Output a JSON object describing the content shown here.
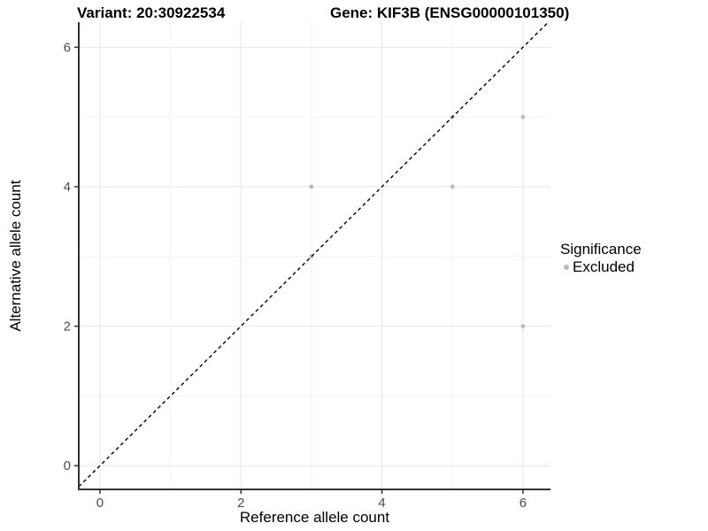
{
  "chart_data": {
    "type": "scatter",
    "titles": [
      "Variant: 20:30922534",
      "Gene: KIF3B (ENSG00000101350)"
    ],
    "xlabel": "Reference allele count",
    "ylabel": "Alternative allele count",
    "xlim": [
      -0.3,
      6.39
    ],
    "ylim": [
      -0.34,
      6.36
    ],
    "x_ticks": [
      0,
      2,
      4,
      6
    ],
    "y_ticks": [
      0,
      2,
      4,
      6
    ],
    "x_minor_ticks": [
      1,
      3,
      5
    ],
    "y_minor_ticks": [
      1,
      3,
      5
    ],
    "grid": "major+minor",
    "reference_line": {
      "type": "identity y=x",
      "style": "dashed",
      "color": "#000000"
    },
    "series": [
      {
        "name": "Excluded",
        "marker": "circle",
        "color": "#bababa",
        "points": [
          [
            3,
            3
          ],
          [
            3,
            4
          ],
          [
            5,
            4
          ],
          [
            5,
            5
          ],
          [
            6,
            2
          ],
          [
            6,
            5
          ]
        ]
      }
    ],
    "legend": {
      "title": "Significance",
      "position": "right",
      "entries": [
        {
          "label": "Excluded",
          "color": "#bababa",
          "marker": "circle"
        }
      ]
    },
    "colors": {
      "background": "#ffffff",
      "grid_major": "#e6e6e6",
      "grid_minor": "#f3f3f3",
      "axis_line": "#333333",
      "tick_label": "#4d4d4d",
      "text": "#000000"
    }
  }
}
